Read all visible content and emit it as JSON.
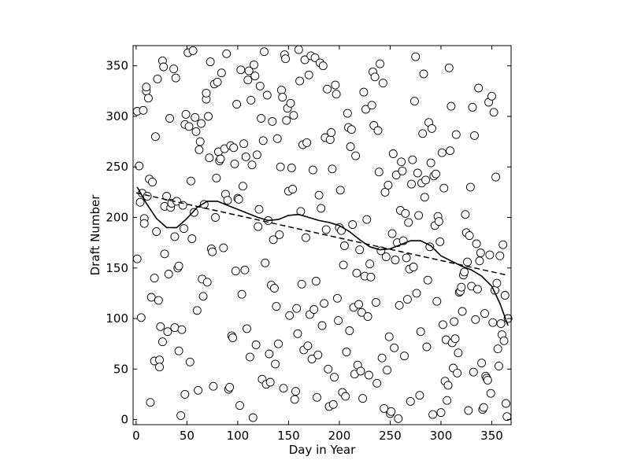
{
  "chart_data": {
    "type": "scatter",
    "title": "",
    "xlabel": "Day in Year",
    "ylabel": "Draft Number",
    "xlim": [
      -3,
      369
    ],
    "ylim": [
      -5,
      370
    ],
    "xticks": [
      0,
      50,
      100,
      150,
      200,
      250,
      300,
      350
    ],
    "yticks": [
      0,
      50,
      100,
      150,
      200,
      250,
      300,
      350
    ],
    "grid": false,
    "legend": "none",
    "marker": "open-circle",
    "points": [
      [
        1,
        305
      ],
      [
        1,
        159
      ],
      [
        3,
        251
      ],
      [
        4,
        215
      ],
      [
        5,
        101
      ],
      [
        6,
        224
      ],
      [
        7,
        306
      ],
      [
        8,
        199
      ],
      [
        8,
        194
      ],
      [
        10,
        325
      ],
      [
        10,
        329
      ],
      [
        11,
        221
      ],
      [
        12,
        318
      ],
      [
        13,
        238
      ],
      [
        14,
        17
      ],
      [
        15,
        121
      ],
      [
        16,
        235
      ],
      [
        18,
        140
      ],
      [
        18,
        58
      ],
      [
        19,
        280
      ],
      [
        20,
        186
      ],
      [
        21,
        337
      ],
      [
        22,
        118
      ],
      [
        23,
        59
      ],
      [
        23,
        52
      ],
      [
        24,
        92
      ],
      [
        26,
        355
      ],
      [
        26,
        77
      ],
      [
        27,
        349
      ],
      [
        28,
        164
      ],
      [
        28,
        211
      ],
      [
        30,
        221
      ],
      [
        31,
        87
      ],
      [
        32,
        144
      ],
      [
        33,
        298
      ],
      [
        34,
        210
      ],
      [
        35,
        214
      ],
      [
        37,
        347
      ],
      [
        38,
        91
      ],
      [
        38,
        181
      ],
      [
        39,
        338
      ],
      [
        40,
        216
      ],
      [
        41,
        150
      ],
      [
        42,
        68
      ],
      [
        42,
        152
      ],
      [
        44,
        4
      ],
      [
        45,
        89
      ],
      [
        46,
        212
      ],
      [
        47,
        189
      ],
      [
        48,
        292
      ],
      [
        48,
        25
      ],
      [
        49,
        302
      ],
      [
        51,
        363
      ],
      [
        52,
        290
      ],
      [
        53,
        57
      ],
      [
        54,
        236
      ],
      [
        55,
        179
      ],
      [
        56,
        365
      ],
      [
        57,
        205
      ],
      [
        58,
        299
      ],
      [
        59,
        285
      ],
      [
        60,
        108
      ],
      [
        61,
        29
      ],
      [
        62,
        267
      ],
      [
        63,
        275
      ],
      [
        64,
        293
      ],
      [
        65,
        139
      ],
      [
        66,
        122
      ],
      [
        67,
        213
      ],
      [
        69,
        317
      ],
      [
        69,
        323
      ],
      [
        70,
        136
      ],
      [
        71,
        300
      ],
      [
        72,
        259
      ],
      [
        73,
        354
      ],
      [
        74,
        169
      ],
      [
        75,
        166
      ],
      [
        76,
        33
      ],
      [
        77,
        332
      ],
      [
        78,
        200
      ],
      [
        79,
        239
      ],
      [
        80,
        334
      ],
      [
        81,
        265
      ],
      [
        82,
        256
      ],
      [
        83,
        258
      ],
      [
        84,
        343
      ],
      [
        86,
        170
      ],
      [
        87,
        268
      ],
      [
        88,
        223
      ],
      [
        89,
        362
      ],
      [
        90,
        217
      ],
      [
        91,
        30
      ],
      [
        92,
        32
      ],
      [
        93,
        271
      ],
      [
        94,
        83
      ],
      [
        95,
        81
      ],
      [
        96,
        269
      ],
      [
        97,
        253
      ],
      [
        98,
        147
      ],
      [
        99,
        312
      ],
      [
        100,
        219
      ],
      [
        101,
        218
      ],
      [
        102,
        14
      ],
      [
        103,
        346
      ],
      [
        104,
        124
      ],
      [
        105,
        231
      ],
      [
        106,
        273
      ],
      [
        107,
        148
      ],
      [
        108,
        260
      ],
      [
        109,
        90
      ],
      [
        110,
        336
      ],
      [
        111,
        345
      ],
      [
        112,
        62
      ],
      [
        113,
        316
      ],
      [
        114,
        252
      ],
      [
        115,
        2
      ],
      [
        116,
        351
      ],
      [
        117,
        340
      ],
      [
        118,
        74
      ],
      [
        119,
        262
      ],
      [
        120,
        191
      ],
      [
        121,
        208
      ],
      [
        122,
        330
      ],
      [
        123,
        298
      ],
      [
        124,
        40
      ],
      [
        125,
        276
      ],
      [
        126,
        364
      ],
      [
        127,
        155
      ],
      [
        128,
        35
      ],
      [
        129,
        321
      ],
      [
        130,
        197
      ],
      [
        131,
        65
      ],
      [
        132,
        37
      ],
      [
        133,
        133
      ],
      [
        134,
        295
      ],
      [
        135,
        178
      ],
      [
        136,
        130
      ],
      [
        137,
        55
      ],
      [
        138,
        112
      ],
      [
        139,
        278
      ],
      [
        140,
        75
      ],
      [
        141,
        183
      ],
      [
        142,
        250
      ],
      [
        143,
        326
      ],
      [
        144,
        319
      ],
      [
        145,
        31
      ],
      [
        146,
        361
      ],
      [
        147,
        357
      ],
      [
        148,
        296
      ],
      [
        149,
        308
      ],
      [
        150,
        226
      ],
      [
        151,
        103
      ],
      [
        152,
        313
      ],
      [
        153,
        249
      ],
      [
        154,
        228
      ],
      [
        155,
        301
      ],
      [
        156,
        20
      ],
      [
        157,
        28
      ],
      [
        158,
        110
      ],
      [
        159,
        85
      ],
      [
        160,
        366
      ],
      [
        161,
        335
      ],
      [
        162,
        206
      ],
      [
        163,
        134
      ],
      [
        164,
        272
      ],
      [
        165,
        69
      ],
      [
        166,
        356
      ],
      [
        167,
        180
      ],
      [
        168,
        274
      ],
      [
        169,
        73
      ],
      [
        170,
        341
      ],
      [
        171,
        104
      ],
      [
        172,
        360
      ],
      [
        173,
        60
      ],
      [
        174,
        247
      ],
      [
        175,
        109
      ],
      [
        176,
        358
      ],
      [
        177,
        137
      ],
      [
        178,
        22
      ],
      [
        179,
        64
      ],
      [
        180,
        222
      ],
      [
        181,
        353
      ],
      [
        182,
        209
      ],
      [
        183,
        93
      ],
      [
        184,
        350
      ],
      [
        185,
        115
      ],
      [
        186,
        279
      ],
      [
        187,
        188
      ],
      [
        188,
        327
      ],
      [
        189,
        50
      ],
      [
        190,
        13
      ],
      [
        191,
        277
      ],
      [
        192,
        284
      ],
      [
        193,
        248
      ],
      [
        194,
        15
      ],
      [
        195,
        42
      ],
      [
        196,
        331
      ],
      [
        197,
        322
      ],
      [
        198,
        120
      ],
      [
        199,
        98
      ],
      [
        200,
        190
      ],
      [
        201,
        227
      ],
      [
        202,
        187
      ],
      [
        203,
        27
      ],
      [
        204,
        153
      ],
      [
        205,
        172
      ],
      [
        206,
        23
      ],
      [
        207,
        67
      ],
      [
        208,
        303
      ],
      [
        209,
        289
      ],
      [
        210,
        88
      ],
      [
        211,
        270
      ],
      [
        212,
        287
      ],
      [
        213,
        193
      ],
      [
        214,
        111
      ],
      [
        215,
        45
      ],
      [
        216,
        261
      ],
      [
        217,
        145
      ],
      [
        218,
        54
      ],
      [
        219,
        114
      ],
      [
        220,
        168
      ],
      [
        221,
        48
      ],
      [
        222,
        106
      ],
      [
        223,
        21
      ],
      [
        224,
        324
      ],
      [
        225,
        142
      ],
      [
        226,
        307
      ],
      [
        227,
        198
      ],
      [
        228,
        102
      ],
      [
        229,
        44
      ],
      [
        230,
        154
      ],
      [
        231,
        141
      ],
      [
        232,
        311
      ],
      [
        233,
        344
      ],
      [
        234,
        291
      ],
      [
        235,
        339
      ],
      [
        236,
        116
      ],
      [
        237,
        36
      ],
      [
        238,
        286
      ],
      [
        239,
        245
      ],
      [
        240,
        352
      ],
      [
        241,
        167
      ],
      [
        242,
        61
      ],
      [
        243,
        333
      ],
      [
        244,
        11
      ],
      [
        245,
        225
      ],
      [
        246,
        161
      ],
      [
        247,
        49
      ],
      [
        248,
        232
      ],
      [
        249,
        82
      ],
      [
        250,
        6
      ],
      [
        251,
        8
      ],
      [
        252,
        184
      ],
      [
        253,
        263
      ],
      [
        254,
        71
      ],
      [
        255,
        158
      ],
      [
        256,
        242
      ],
      [
        257,
        175
      ],
      [
        258,
        1
      ],
      [
        259,
        113
      ],
      [
        260,
        207
      ],
      [
        261,
        255
      ],
      [
        262,
        246
      ],
      [
        263,
        177
      ],
      [
        264,
        63
      ],
      [
        265,
        204
      ],
      [
        266,
        160
      ],
      [
        267,
        119
      ],
      [
        268,
        195
      ],
      [
        269,
        149
      ],
      [
        270,
        18
      ],
      [
        271,
        233
      ],
      [
        272,
        257
      ],
      [
        273,
        151
      ],
      [
        274,
        315
      ],
      [
        275,
        359
      ],
      [
        276,
        125
      ],
      [
        277,
        244
      ],
      [
        278,
        202
      ],
      [
        279,
        24
      ],
      [
        280,
        87
      ],
      [
        281,
        234
      ],
      [
        282,
        283
      ],
      [
        283,
        342
      ],
      [
        284,
        220
      ],
      [
        285,
        237
      ],
      [
        286,
        72
      ],
      [
        287,
        138
      ],
      [
        288,
        294
      ],
      [
        289,
        171
      ],
      [
        290,
        254
      ],
      [
        291,
        288
      ],
      [
        292,
        5
      ],
      [
        293,
        241
      ],
      [
        294,
        192
      ],
      [
        295,
        243
      ],
      [
        296,
        117
      ],
      [
        297,
        201
      ],
      [
        298,
        196
      ],
      [
        299,
        176
      ],
      [
        300,
        7
      ],
      [
        301,
        264
      ],
      [
        302,
        94
      ],
      [
        303,
        229
      ],
      [
        304,
        38
      ],
      [
        305,
        79
      ],
      [
        306,
        19
      ],
      [
        307,
        34
      ],
      [
        308,
        348
      ],
      [
        309,
        266
      ],
      [
        310,
        310
      ],
      [
        311,
        76
      ],
      [
        312,
        51
      ],
      [
        313,
        97
      ],
      [
        314,
        80
      ],
      [
        315,
        282
      ],
      [
        316,
        46
      ],
      [
        317,
        66
      ],
      [
        318,
        126
      ],
      [
        319,
        127
      ],
      [
        320,
        131
      ],
      [
        321,
        107
      ],
      [
        322,
        143
      ],
      [
        323,
        146
      ],
      [
        324,
        203
      ],
      [
        325,
        185
      ],
      [
        326,
        156
      ],
      [
        327,
        9
      ],
      [
        328,
        182
      ],
      [
        329,
        230
      ],
      [
        330,
        132
      ],
      [
        331,
        309
      ],
      [
        332,
        47
      ],
      [
        333,
        281
      ],
      [
        334,
        99
      ],
      [
        335,
        174
      ],
      [
        336,
        129
      ],
      [
        337,
        328
      ],
      [
        338,
        157
      ],
      [
        339,
        165
      ],
      [
        340,
        56
      ],
      [
        341,
        10
      ],
      [
        342,
        12
      ],
      [
        343,
        105
      ],
      [
        344,
        43
      ],
      [
        345,
        41
      ],
      [
        346,
        39
      ],
      [
        347,
        314
      ],
      [
        348,
        163
      ],
      [
        349,
        26
      ],
      [
        350,
        320
      ],
      [
        351,
        96
      ],
      [
        352,
        304
      ],
      [
        353,
        128
      ],
      [
        354,
        240
      ],
      [
        355,
        135
      ],
      [
        356,
        70
      ],
      [
        357,
        53
      ],
      [
        358,
        162
      ],
      [
        359,
        95
      ],
      [
        360,
        84
      ],
      [
        361,
        173
      ],
      [
        362,
        78
      ],
      [
        363,
        123
      ],
      [
        364,
        16
      ],
      [
        365,
        3
      ],
      [
        366,
        100
      ]
    ],
    "trend_linear": [
      [
        0,
        224.3
      ],
      [
        366,
        142.7
      ]
    ],
    "trend_smooth": [
      [
        1,
        230
      ],
      [
        10,
        214
      ],
      [
        20,
        199
      ],
      [
        30,
        190
      ],
      [
        40,
        190
      ],
      [
        50,
        199
      ],
      [
        60,
        210
      ],
      [
        70,
        216
      ],
      [
        80,
        216
      ],
      [
        90,
        212
      ],
      [
        100,
        208
      ],
      [
        110,
        204
      ],
      [
        120,
        200
      ],
      [
        130,
        197
      ],
      [
        140,
        198
      ],
      [
        150,
        202
      ],
      [
        160,
        203
      ],
      [
        170,
        200
      ],
      [
        180,
        197
      ],
      [
        190,
        195
      ],
      [
        200,
        192
      ],
      [
        210,
        186
      ],
      [
        220,
        178
      ],
      [
        230,
        171
      ],
      [
        240,
        168
      ],
      [
        250,
        169
      ],
      [
        260,
        173
      ],
      [
        270,
        177
      ],
      [
        280,
        177
      ],
      [
        290,
        172
      ],
      [
        300,
        162
      ],
      [
        310,
        157
      ],
      [
        320,
        152
      ],
      [
        330,
        148
      ],
      [
        340,
        142
      ],
      [
        350,
        132
      ],
      [
        358,
        115
      ],
      [
        366,
        93
      ]
    ]
  }
}
